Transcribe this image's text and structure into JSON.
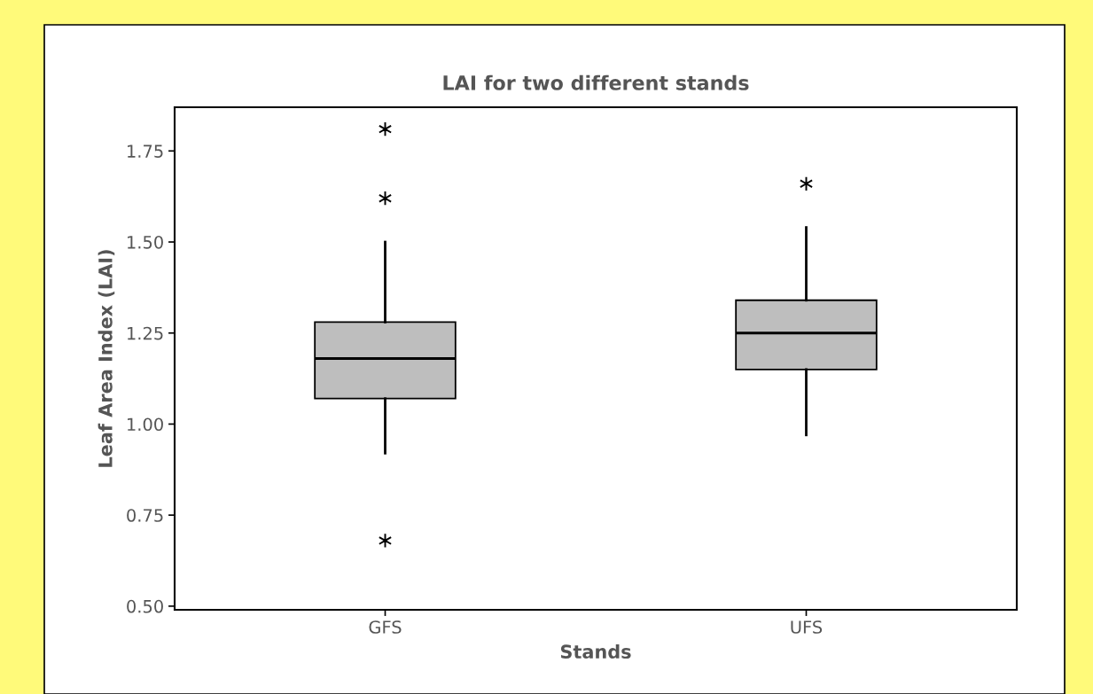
{
  "chart_data": {
    "type": "box",
    "title": "LAI for two different stands",
    "xlabel": "Stands",
    "ylabel": "Leaf Area Index (LAI)",
    "categories": [
      "GFS",
      "UFS"
    ],
    "boxes": [
      {
        "low": 0.92,
        "q1": 1.07,
        "median": 1.18,
        "q3": 1.28,
        "high": 1.5,
        "outliers": [
          1.81,
          1.62,
          0.68
        ]
      },
      {
        "low": 0.97,
        "q1": 1.15,
        "median": 1.25,
        "q3": 1.34,
        "high": 1.54,
        "outliers": [
          1.66
        ]
      }
    ],
    "color": "#bebebe",
    "ylim": [
      0.49,
      1.87
    ],
    "yticks": [
      {
        "value": 0.5,
        "label": "0.50"
      },
      {
        "value": 0.75,
        "label": "0.75"
      },
      {
        "value": 1.0,
        "label": "1.00"
      },
      {
        "value": 1.25,
        "label": "1.25"
      },
      {
        "value": 1.5,
        "label": "1.50"
      },
      {
        "value": 1.75,
        "label": "1.75"
      }
    ],
    "grid": false,
    "legend": false
  }
}
